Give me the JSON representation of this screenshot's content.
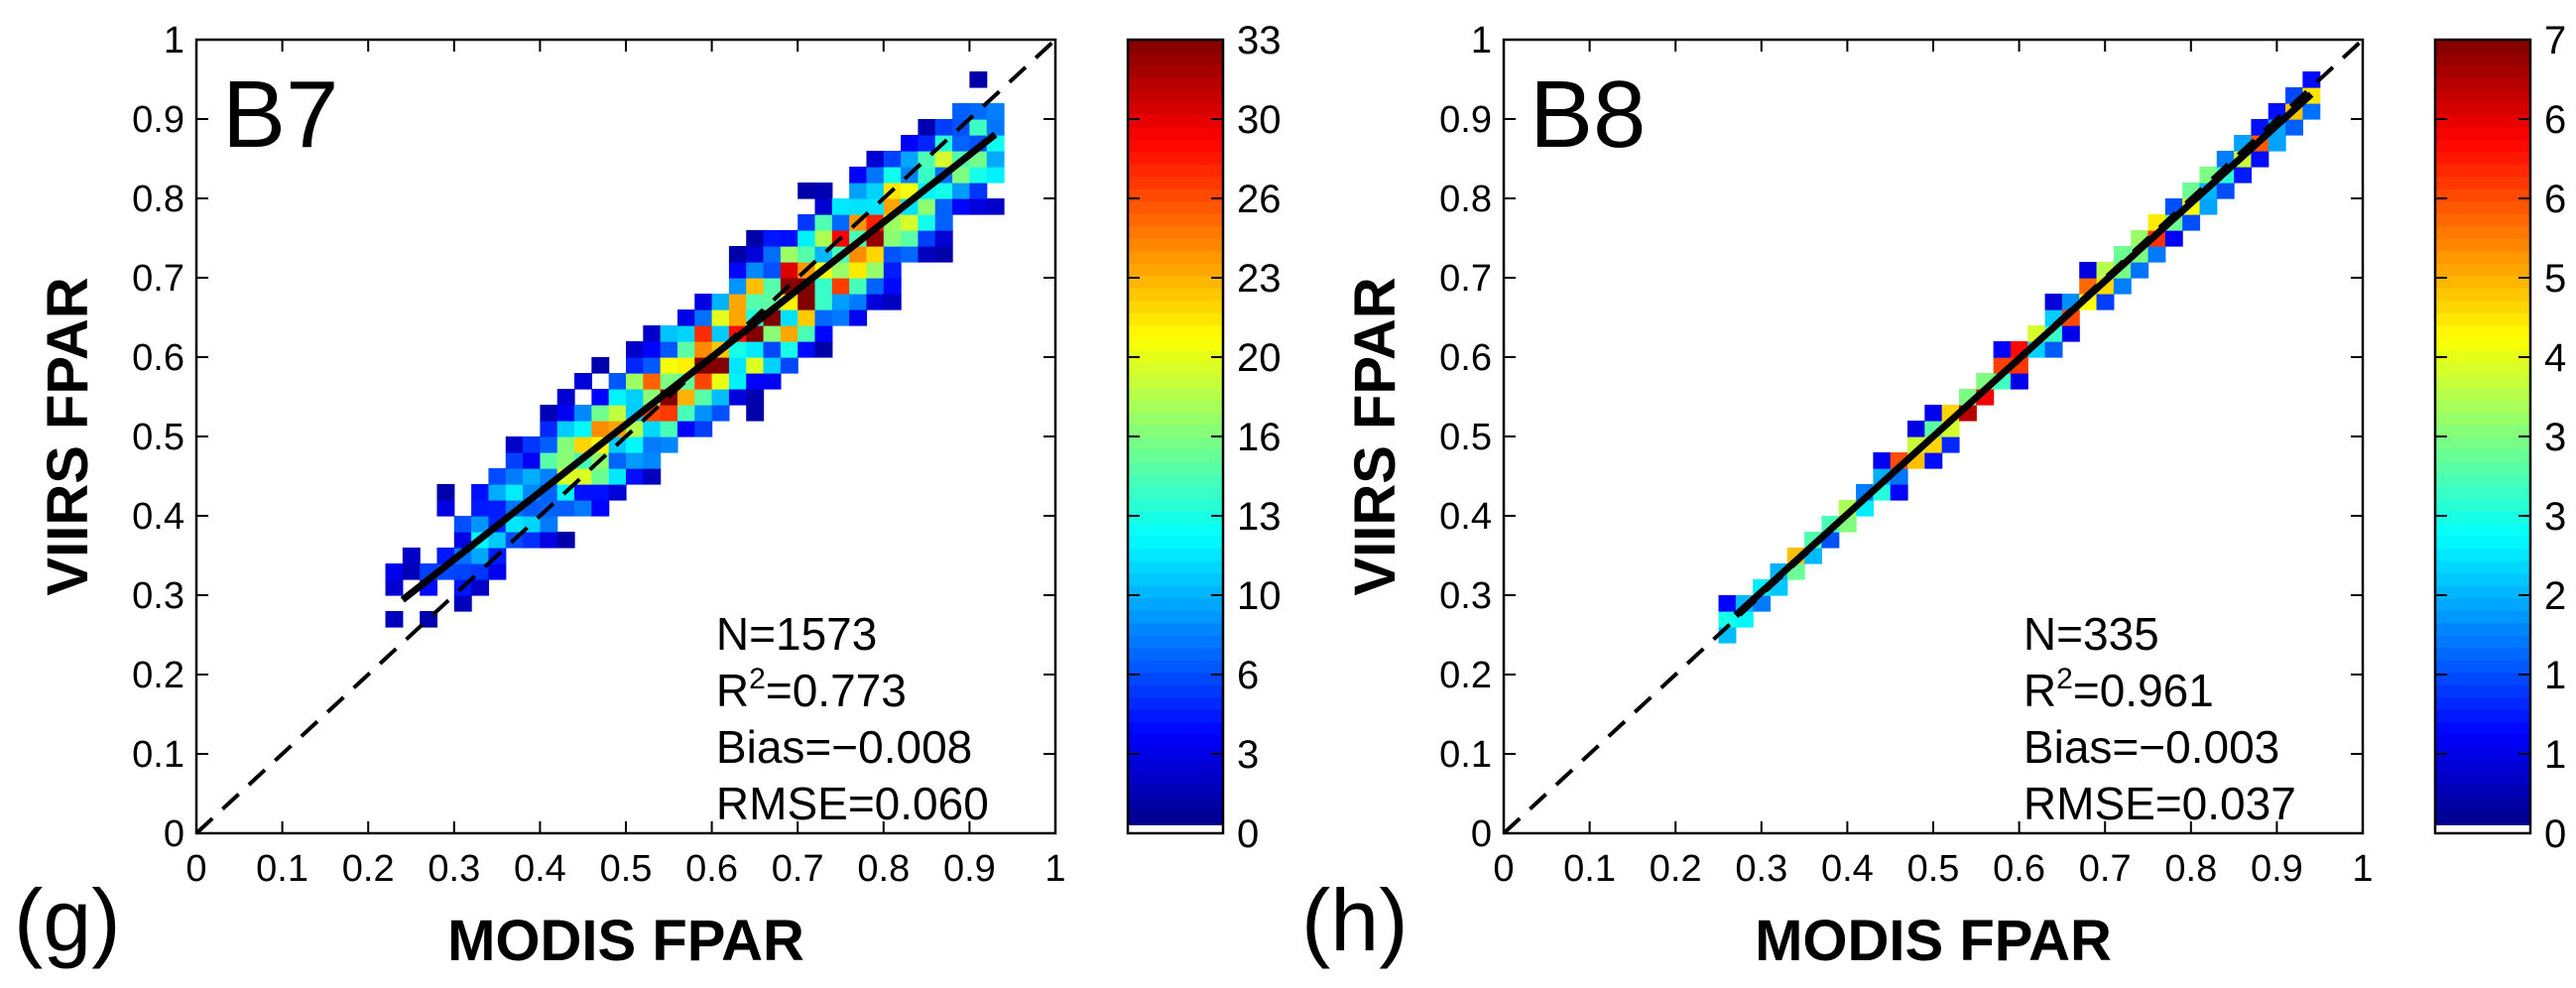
{
  "figure": {
    "panels": [
      "g",
      "h"
    ]
  },
  "chart_data": [
    {
      "type": "heatmap",
      "panel_label": "(g)",
      "title": "B7",
      "xlabel": "MODIS FPAR",
      "ylabel": "VIIRS FPAR",
      "xlim": [
        0,
        1
      ],
      "ylim": [
        0,
        1
      ],
      "x_ticks": [
        "0",
        "0.1",
        "0.2",
        "0.3",
        "0.4",
        "0.5",
        "0.6",
        "0.7",
        "0.8",
        "0.9",
        "1"
      ],
      "y_ticks": [
        "0",
        "0.1",
        "0.2",
        "0.3",
        "0.4",
        "0.5",
        "0.6",
        "0.7",
        "0.8",
        "0.9",
        "1"
      ],
      "bin_size": 0.02,
      "density_max": 33,
      "colorbar_ticks": [
        "0",
        "3",
        "6",
        "10",
        "13",
        "16",
        "20",
        "23",
        "26",
        "30",
        "33"
      ],
      "density_model": {
        "type": "gaussian-band",
        "center_x": 0.66,
        "spread_along": 0.2,
        "spread_across": 0.045,
        "peak": 33
      },
      "fit_line": {
        "slope": 0.85,
        "intercept": 0.09,
        "x_range": [
          0.24,
          0.93
        ]
      },
      "one_to_one_line": {
        "x_range": [
          0,
          1
        ]
      },
      "stats": {
        "n": "N=1573",
        "r2_prefix": "R",
        "r2_sup": "2",
        "r2_value": "=0.773",
        "bias": "Bias=−0.008",
        "rmse": "RMSE=0.060"
      },
      "seed": 7
    },
    {
      "type": "heatmap",
      "panel_label": "(h)",
      "title": "B8",
      "xlabel": "MODIS FPAR",
      "ylabel": "VIIRS FPAR",
      "xlim": [
        0,
        1
      ],
      "ylim": [
        0,
        1
      ],
      "x_ticks": [
        "0",
        "0.1",
        "0.2",
        "0.3",
        "0.4",
        "0.5",
        "0.6",
        "0.7",
        "0.8",
        "0.9",
        "1"
      ],
      "y_ticks": [
        "0",
        "0.1",
        "0.2",
        "0.3",
        "0.4",
        "0.5",
        "0.6",
        "0.7",
        "0.8",
        "0.9",
        "1"
      ],
      "bin_size": 0.02,
      "density_max": 7,
      "colorbar_ticks": [
        "0",
        "1",
        "1",
        "2",
        "3",
        "3",
        "4",
        "5",
        "6",
        "6",
        "7"
      ],
      "density_model": {
        "type": "gaussian-band",
        "center_x": 0.62,
        "spread_along": 0.3,
        "spread_across": 0.015,
        "peak": 7
      },
      "fit_line": {
        "slope": 0.98,
        "intercept": 0.01,
        "x_range": [
          0.27,
          0.94
        ]
      },
      "one_to_one_line": {
        "x_range": [
          0,
          1
        ]
      },
      "stats": {
        "n": "N=335",
        "r2_prefix": "R",
        "r2_sup": "2",
        "r2_value": "=0.961",
        "bias": "Bias=−0.003",
        "rmse": "RMSE=0.037"
      },
      "seed": 8
    }
  ]
}
